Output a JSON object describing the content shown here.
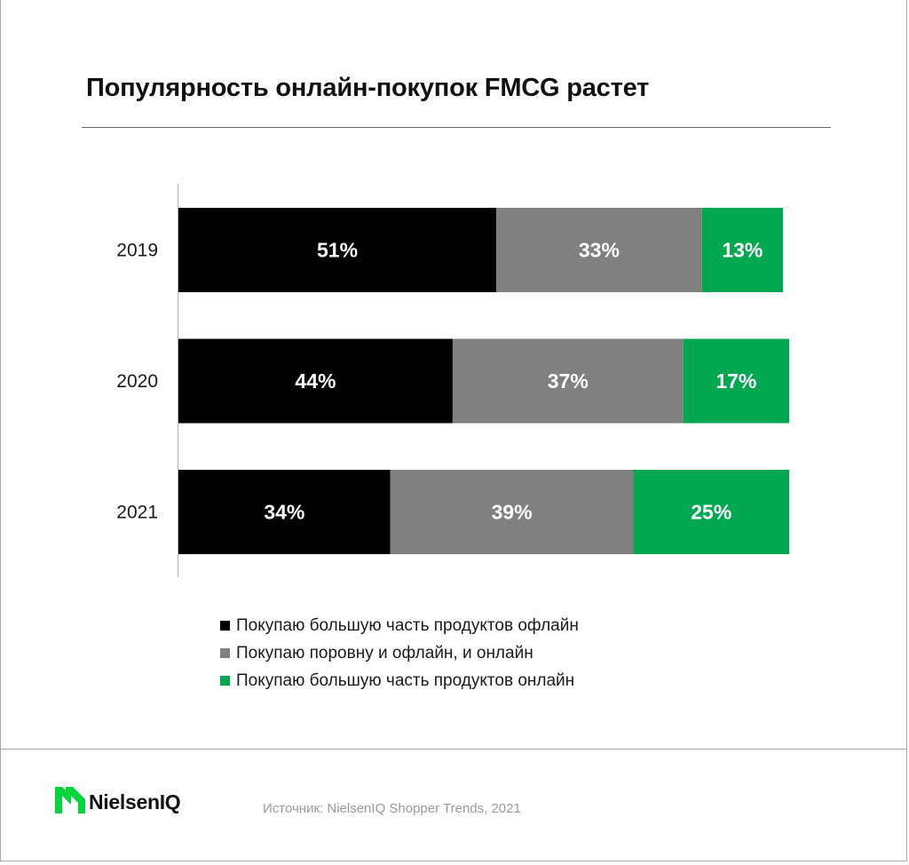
{
  "title": "Популярность онлайн-покупок FMCG растет",
  "chart_data": {
    "type": "bar",
    "orientation": "horizontal",
    "stacked": true,
    "categories": [
      "2019",
      "2020",
      "2021"
    ],
    "series": [
      {
        "name": "Покупаю большую часть продуктов офлайн",
        "color": "#000000",
        "values": [
          51,
          44,
          34
        ]
      },
      {
        "name": "Покупаю поровну и офлайн, и онлайн",
        "color": "#808080",
        "values": [
          33,
          37,
          39
        ]
      },
      {
        "name": "Покупаю большую часть продуктов онлайн",
        "color": "#00a94f",
        "values": [
          13,
          17,
          25
        ]
      }
    ],
    "value_labels": [
      [
        "51%",
        "33%",
        "13%"
      ],
      [
        "44%",
        "37%",
        "17%"
      ],
      [
        "34%",
        "39%",
        "25%"
      ]
    ],
    "xlim": [
      0,
      97
    ],
    "grid": false,
    "legend": "bottom"
  },
  "footer": {
    "brand": "NielsenIQ",
    "source": "Источник: NielsenIQ Shopper Trends, 2021"
  },
  "colors": {
    "brand_green": "#00d53a",
    "axis": "#b0b0b0"
  }
}
